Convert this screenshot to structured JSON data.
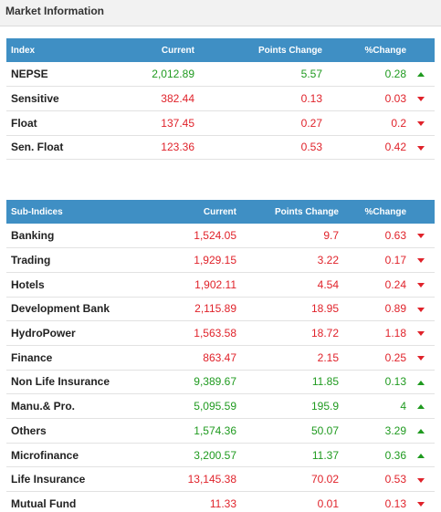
{
  "panel": {
    "title": "Market Information"
  },
  "colors": {
    "header_bg": "#3f8fc4",
    "up": "#1f9a1f",
    "down": "#e0222a"
  },
  "indices": {
    "headers": [
      "Index",
      "Current",
      "Points Change",
      "%Change"
    ],
    "rows": [
      {
        "name": "NEPSE",
        "current": "2,012.89",
        "points": "5.57",
        "pct": "0.28",
        "dir": "up"
      },
      {
        "name": "Sensitive",
        "current": "382.44",
        "points": "0.13",
        "pct": "0.03",
        "dir": "down"
      },
      {
        "name": "Float",
        "current": "137.45",
        "points": "0.27",
        "pct": "0.2",
        "dir": "down"
      },
      {
        "name": "Sen. Float",
        "current": "123.36",
        "points": "0.53",
        "pct": "0.42",
        "dir": "down"
      }
    ]
  },
  "sub_indices": {
    "headers": [
      "Sub-Indices",
      "Current",
      "Points Change",
      "%Change"
    ],
    "rows": [
      {
        "name": "Banking",
        "current": "1,524.05",
        "points": "9.7",
        "pct": "0.63",
        "dir": "down"
      },
      {
        "name": "Trading",
        "current": "1,929.15",
        "points": "3.22",
        "pct": "0.17",
        "dir": "down"
      },
      {
        "name": "Hotels",
        "current": "1,902.11",
        "points": "4.54",
        "pct": "0.24",
        "dir": "down"
      },
      {
        "name": "Development Bank",
        "current": "2,115.89",
        "points": "18.95",
        "pct": "0.89",
        "dir": "down"
      },
      {
        "name": "HydroPower",
        "current": "1,563.58",
        "points": "18.72",
        "pct": "1.18",
        "dir": "down"
      },
      {
        "name": "Finance",
        "current": "863.47",
        "points": "2.15",
        "pct": "0.25",
        "dir": "down"
      },
      {
        "name": "Non Life Insurance",
        "current": "9,389.67",
        "points": "11.85",
        "pct": "0.13",
        "dir": "up"
      },
      {
        "name": "Manu.& Pro.",
        "current": "5,095.59",
        "points": "195.9",
        "pct": "4",
        "dir": "up"
      },
      {
        "name": "Others",
        "current": "1,574.36",
        "points": "50.07",
        "pct": "3.29",
        "dir": "up"
      },
      {
        "name": "Microfinance",
        "current": "3,200.57",
        "points": "11.37",
        "pct": "0.36",
        "dir": "up"
      },
      {
        "name": "Life Insurance",
        "current": "13,145.38",
        "points": "70.02",
        "pct": "0.53",
        "dir": "down"
      },
      {
        "name": "Mutual Fund",
        "current": "11.33",
        "points": "0.01",
        "pct": "0.13",
        "dir": "down"
      }
    ]
  }
}
